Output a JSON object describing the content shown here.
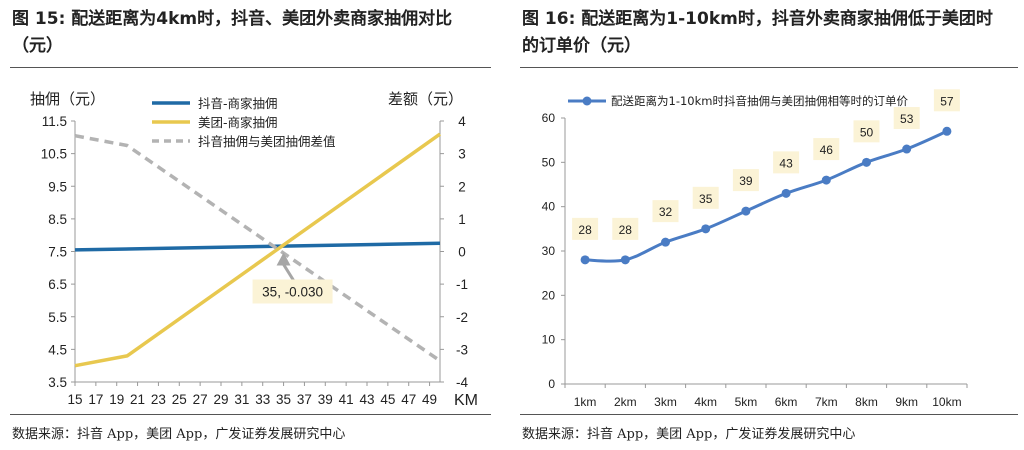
{
  "figures": {
    "left": {
      "title": "图 15: 配送距离为4km时，抖音、美团外卖商家抽佣对比（元）",
      "source": "数据来源：抖音 App，美团 App，广发证券发展研究中心"
    },
    "right": {
      "title": "图 16: 配送距离为1-10km时，抖音外卖商家抽佣低于美团时的订单价（元）",
      "source": "数据来源：抖音 App，美团 App，广发证券发展研究中心"
    }
  },
  "chart_data": [
    {
      "type": "line",
      "title": "配送距离为4km时，抖音、美团外卖商家抽佣对比（元）",
      "xlabel": "KM",
      "ylabel": "抽佣（元）",
      "y2label": "差额（元）",
      "x": [
        15,
        17,
        19,
        21,
        23,
        25,
        27,
        29,
        31,
        33,
        35,
        37,
        39,
        41,
        43,
        45,
        47,
        49
      ],
      "xlim": [
        15,
        50
      ],
      "ylim": [
        3.5,
        11.5
      ],
      "y_ticks": [
        "3.5",
        "4.5",
        "5.5",
        "6.5",
        "7.5",
        "8.5",
        "9.5",
        "10.5",
        "11.5"
      ],
      "y2lim": [
        -4,
        4
      ],
      "y2_ticks": [
        "-4",
        "-3",
        "-2",
        "-1",
        "0",
        "1",
        "2",
        "3",
        "4"
      ],
      "series": [
        {
          "name": "抖音-商家抽佣",
          "axis": "left",
          "color": "#1f6aa5",
          "style": "solid",
          "points": [
            [
              15,
              7.55
            ],
            [
              50,
              7.75
            ]
          ]
        },
        {
          "name": "美团-商家抽佣",
          "axis": "left",
          "color": "#e8c84f",
          "style": "solid",
          "points": [
            [
              15,
              4.0
            ],
            [
              20,
              4.3
            ],
            [
              50,
              11.1
            ]
          ]
        },
        {
          "name": "抖音抽佣与美团抽佣差值",
          "axis": "right",
          "color": "#b3b3b3",
          "style": "dashed",
          "points": [
            [
              15,
              3.55
            ],
            [
              20,
              3.25
            ],
            [
              50,
              -3.35
            ]
          ]
        }
      ],
      "annotation": {
        "x": 35,
        "y": -0.03,
        "label": "35, -0.030"
      },
      "legend": "top-center",
      "grid": false
    },
    {
      "type": "line",
      "title": "配送距离为1-10km时，抖音外卖商家抽佣低于美团时的订单价（元）",
      "categories": [
        "1km",
        "2km",
        "3km",
        "4km",
        "5km",
        "6km",
        "7km",
        "8km",
        "9km",
        "10km"
      ],
      "series": [
        {
          "name": "配送距离为1-10km时抖音抽佣与美团抽佣相等时的订单价",
          "values": [
            28,
            28,
            32,
            35,
            39,
            43,
            46,
            50,
            53,
            57
          ],
          "color": "#4a7cc4"
        }
      ],
      "ylim": [
        0,
        60
      ],
      "y_ticks": [
        "0",
        "10",
        "20",
        "30",
        "40",
        "50",
        "60"
      ],
      "legend": "top",
      "grid": false
    }
  ]
}
